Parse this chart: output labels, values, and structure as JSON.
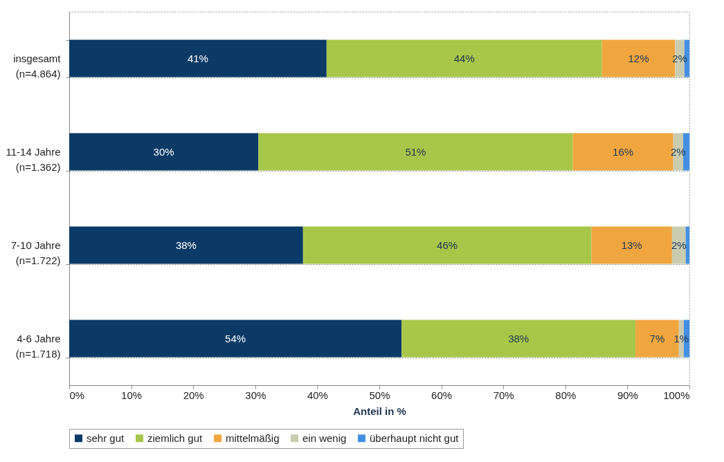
{
  "chart_data": {
    "type": "bar",
    "orientation": "horizontal",
    "stacked": true,
    "xlabel": "Anteil in %",
    "categories": [
      "insgesamt\n(n=4.864)",
      "11-14 Jahre\n(n=1.362)",
      "7-10 Jahre\n(n=1.722)",
      "4-6 Jahre\n(n=1.718)"
    ],
    "series": [
      {
        "name": "sehr gut",
        "color": "#0b3a66",
        "values": [
          41.5,
          30.5,
          37.7,
          53.6
        ],
        "value_labels": [
          "41%",
          "30%",
          "38%",
          "54%"
        ]
      },
      {
        "name": "ziemlich gut",
        "color": "#a8c64a",
        "values": [
          44.4,
          50.7,
          46.5,
          37.7
        ],
        "value_labels": [
          "44%",
          "51%",
          "46%",
          "38%"
        ]
      },
      {
        "name": "mittelmäßig",
        "color": "#f0a640",
        "values": [
          11.8,
          16.2,
          13.0,
          7.0
        ],
        "value_labels": [
          "12%",
          "16%",
          "13%",
          "7%"
        ]
      },
      {
        "name": "ein wenig",
        "color": "#c9ccb0",
        "values": [
          1.5,
          1.6,
          2.2,
          0.8
        ],
        "value_labels": [
          "2%",
          "2%",
          "2%",
          "1%"
        ]
      },
      {
        "name": "überhaupt nicht gut",
        "color": "#4390e2",
        "values": [
          0.8,
          1.0,
          0.6,
          0.9
        ],
        "value_labels": [
          null,
          null,
          null,
          null
        ]
      }
    ],
    "xlim": [
      0,
      100
    ],
    "xticks": [
      {
        "value": 0,
        "label": "0%"
      },
      {
        "value": 10,
        "label": "10%"
      },
      {
        "value": 20,
        "label": "20%"
      },
      {
        "value": 30,
        "label": "30%"
      },
      {
        "value": 40,
        "label": "40%"
      },
      {
        "value": 50,
        "label": "50%"
      },
      {
        "value": 60,
        "label": "60%"
      },
      {
        "value": 70,
        "label": "70%"
      },
      {
        "value": 80,
        "label": "80%"
      },
      {
        "value": 90,
        "label": "90%"
      },
      {
        "value": 100,
        "label": "100%"
      }
    ],
    "grid": "y",
    "legend": "bottom"
  }
}
